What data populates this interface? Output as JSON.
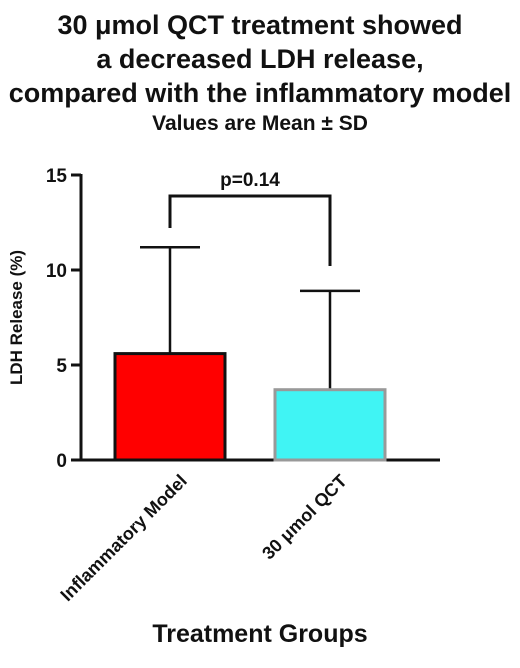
{
  "chart_data": {
    "type": "bar",
    "title_lines": [
      "30 μmol QCT treatment showed",
      "a decreased LDH release,",
      "compared  with the inflammatory model"
    ],
    "subtitle": "Values are Mean ± SD",
    "xlabel": "Treatment Groups",
    "ylabel": "LDH Release (%)",
    "ylim": [
      0,
      15
    ],
    "yticks": [
      0,
      5,
      10,
      15
    ],
    "ytick_labels": [
      "0",
      "5",
      "10",
      "15"
    ],
    "categories": [
      "Inflammatory Model",
      "30 μmol QCT"
    ],
    "values": [
      5.6,
      3.7
    ],
    "sd": [
      5.6,
      5.2
    ],
    "bar_colors": [
      "#ff0000",
      "#40f4f4"
    ],
    "bar_edge_colors": [
      "#111111",
      "#999999"
    ],
    "annotation": {
      "text": "p=0.14",
      "between": [
        0,
        1
      ]
    }
  }
}
